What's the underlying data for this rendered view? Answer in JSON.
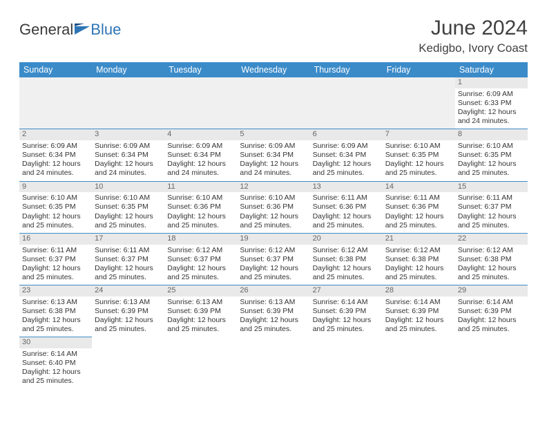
{
  "brand": {
    "part1": "General",
    "part2": "Blue"
  },
  "header": {
    "title": "June 2024",
    "location": "Kedigbo, Ivory Coast"
  },
  "colors": {
    "headerBar": "#3b8bc9",
    "blankCell": "#f0f0f0",
    "dayNumBg": "#e9e9e9",
    "brandBlue": "#2e75b6"
  },
  "dayNames": [
    "Sunday",
    "Monday",
    "Tuesday",
    "Wednesday",
    "Thursday",
    "Friday",
    "Saturday"
  ],
  "weeks": [
    [
      null,
      null,
      null,
      null,
      null,
      null,
      {
        "n": "1",
        "sr": "Sunrise: 6:09 AM",
        "ss": "Sunset: 6:33 PM",
        "d1": "Daylight: 12 hours",
        "d2": "and 24 minutes."
      }
    ],
    [
      {
        "n": "2",
        "sr": "Sunrise: 6:09 AM",
        "ss": "Sunset: 6:34 PM",
        "d1": "Daylight: 12 hours",
        "d2": "and 24 minutes."
      },
      {
        "n": "3",
        "sr": "Sunrise: 6:09 AM",
        "ss": "Sunset: 6:34 PM",
        "d1": "Daylight: 12 hours",
        "d2": "and 24 minutes."
      },
      {
        "n": "4",
        "sr": "Sunrise: 6:09 AM",
        "ss": "Sunset: 6:34 PM",
        "d1": "Daylight: 12 hours",
        "d2": "and 24 minutes."
      },
      {
        "n": "5",
        "sr": "Sunrise: 6:09 AM",
        "ss": "Sunset: 6:34 PM",
        "d1": "Daylight: 12 hours",
        "d2": "and 24 minutes."
      },
      {
        "n": "6",
        "sr": "Sunrise: 6:09 AM",
        "ss": "Sunset: 6:34 PM",
        "d1": "Daylight: 12 hours",
        "d2": "and 25 minutes."
      },
      {
        "n": "7",
        "sr": "Sunrise: 6:10 AM",
        "ss": "Sunset: 6:35 PM",
        "d1": "Daylight: 12 hours",
        "d2": "and 25 minutes."
      },
      {
        "n": "8",
        "sr": "Sunrise: 6:10 AM",
        "ss": "Sunset: 6:35 PM",
        "d1": "Daylight: 12 hours",
        "d2": "and 25 minutes."
      }
    ],
    [
      {
        "n": "9",
        "sr": "Sunrise: 6:10 AM",
        "ss": "Sunset: 6:35 PM",
        "d1": "Daylight: 12 hours",
        "d2": "and 25 minutes."
      },
      {
        "n": "10",
        "sr": "Sunrise: 6:10 AM",
        "ss": "Sunset: 6:35 PM",
        "d1": "Daylight: 12 hours",
        "d2": "and 25 minutes."
      },
      {
        "n": "11",
        "sr": "Sunrise: 6:10 AM",
        "ss": "Sunset: 6:36 PM",
        "d1": "Daylight: 12 hours",
        "d2": "and 25 minutes."
      },
      {
        "n": "12",
        "sr": "Sunrise: 6:10 AM",
        "ss": "Sunset: 6:36 PM",
        "d1": "Daylight: 12 hours",
        "d2": "and 25 minutes."
      },
      {
        "n": "13",
        "sr": "Sunrise: 6:11 AM",
        "ss": "Sunset: 6:36 PM",
        "d1": "Daylight: 12 hours",
        "d2": "and 25 minutes."
      },
      {
        "n": "14",
        "sr": "Sunrise: 6:11 AM",
        "ss": "Sunset: 6:36 PM",
        "d1": "Daylight: 12 hours",
        "d2": "and 25 minutes."
      },
      {
        "n": "15",
        "sr": "Sunrise: 6:11 AM",
        "ss": "Sunset: 6:37 PM",
        "d1": "Daylight: 12 hours",
        "d2": "and 25 minutes."
      }
    ],
    [
      {
        "n": "16",
        "sr": "Sunrise: 6:11 AM",
        "ss": "Sunset: 6:37 PM",
        "d1": "Daylight: 12 hours",
        "d2": "and 25 minutes."
      },
      {
        "n": "17",
        "sr": "Sunrise: 6:11 AM",
        "ss": "Sunset: 6:37 PM",
        "d1": "Daylight: 12 hours",
        "d2": "and 25 minutes."
      },
      {
        "n": "18",
        "sr": "Sunrise: 6:12 AM",
        "ss": "Sunset: 6:37 PM",
        "d1": "Daylight: 12 hours",
        "d2": "and 25 minutes."
      },
      {
        "n": "19",
        "sr": "Sunrise: 6:12 AM",
        "ss": "Sunset: 6:37 PM",
        "d1": "Daylight: 12 hours",
        "d2": "and 25 minutes."
      },
      {
        "n": "20",
        "sr": "Sunrise: 6:12 AM",
        "ss": "Sunset: 6:38 PM",
        "d1": "Daylight: 12 hours",
        "d2": "and 25 minutes."
      },
      {
        "n": "21",
        "sr": "Sunrise: 6:12 AM",
        "ss": "Sunset: 6:38 PM",
        "d1": "Daylight: 12 hours",
        "d2": "and 25 minutes."
      },
      {
        "n": "22",
        "sr": "Sunrise: 6:12 AM",
        "ss": "Sunset: 6:38 PM",
        "d1": "Daylight: 12 hours",
        "d2": "and 25 minutes."
      }
    ],
    [
      {
        "n": "23",
        "sr": "Sunrise: 6:13 AM",
        "ss": "Sunset: 6:38 PM",
        "d1": "Daylight: 12 hours",
        "d2": "and 25 minutes."
      },
      {
        "n": "24",
        "sr": "Sunrise: 6:13 AM",
        "ss": "Sunset: 6:39 PM",
        "d1": "Daylight: 12 hours",
        "d2": "and 25 minutes."
      },
      {
        "n": "25",
        "sr": "Sunrise: 6:13 AM",
        "ss": "Sunset: 6:39 PM",
        "d1": "Daylight: 12 hours",
        "d2": "and 25 minutes."
      },
      {
        "n": "26",
        "sr": "Sunrise: 6:13 AM",
        "ss": "Sunset: 6:39 PM",
        "d1": "Daylight: 12 hours",
        "d2": "and 25 minutes."
      },
      {
        "n": "27",
        "sr": "Sunrise: 6:14 AM",
        "ss": "Sunset: 6:39 PM",
        "d1": "Daylight: 12 hours",
        "d2": "and 25 minutes."
      },
      {
        "n": "28",
        "sr": "Sunrise: 6:14 AM",
        "ss": "Sunset: 6:39 PM",
        "d1": "Daylight: 12 hours",
        "d2": "and 25 minutes."
      },
      {
        "n": "29",
        "sr": "Sunrise: 6:14 AM",
        "ss": "Sunset: 6:39 PM",
        "d1": "Daylight: 12 hours",
        "d2": "and 25 minutes."
      }
    ],
    [
      {
        "n": "30",
        "sr": "Sunrise: 6:14 AM",
        "ss": "Sunset: 6:40 PM",
        "d1": "Daylight: 12 hours",
        "d2": "and 25 minutes."
      },
      null,
      null,
      null,
      null,
      null,
      null
    ]
  ]
}
